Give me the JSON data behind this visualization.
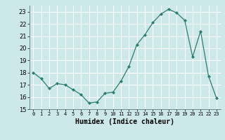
{
  "x": [
    0,
    1,
    2,
    3,
    4,
    5,
    6,
    7,
    8,
    9,
    10,
    11,
    12,
    13,
    14,
    15,
    16,
    17,
    18,
    19,
    20,
    21,
    22,
    23
  ],
  "y": [
    18.0,
    17.5,
    16.7,
    17.1,
    17.0,
    16.6,
    16.2,
    15.5,
    15.6,
    16.3,
    16.4,
    17.3,
    18.5,
    20.3,
    21.1,
    22.1,
    22.8,
    23.2,
    22.9,
    22.3,
    19.3,
    21.4,
    17.7,
    15.9
  ],
  "line_color": "#2d7d6e",
  "marker": "D",
  "marker_size": 2.0,
  "bg_color": "#cce8e8",
  "grid_color": "#ffffff",
  "xlabel": "Humidex (Indice chaleur)",
  "ylim": [
    15,
    23.5
  ],
  "xlim": [
    -0.5,
    23.5
  ],
  "yticks": [
    15,
    16,
    17,
    18,
    19,
    20,
    21,
    22,
    23
  ],
  "xticks": [
    0,
    1,
    2,
    3,
    4,
    5,
    6,
    7,
    8,
    9,
    10,
    11,
    12,
    13,
    14,
    15,
    16,
    17,
    18,
    19,
    20,
    21,
    22,
    23
  ]
}
